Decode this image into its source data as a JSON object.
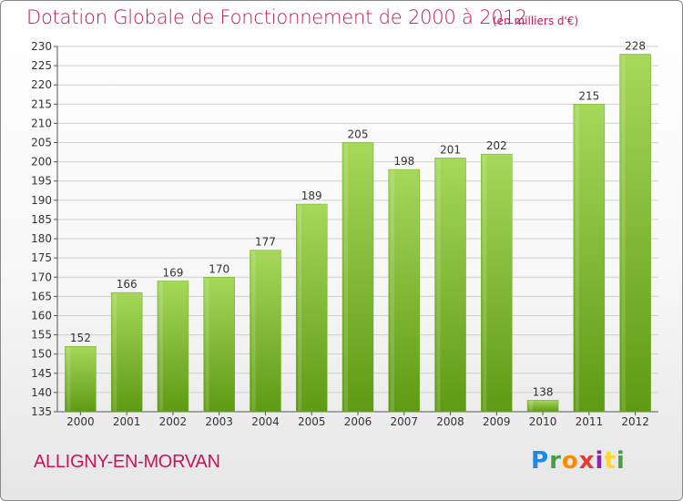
{
  "header": {
    "title": "Dotation Globale de Fonctionnement de 2000 à 2012",
    "unit": "(en milliers d'€)"
  },
  "footer": {
    "commune": "ALLIGNY-EN-MORVAN",
    "logo_text": "Proxiti"
  },
  "colors": {
    "bar_light": "#a6d85a",
    "bar_dark": "#5e9a14",
    "text_accent": "#c2185b",
    "grid": "#d0d0d0"
  },
  "chart_data": {
    "type": "bar",
    "title": "Dotation Globale de Fonctionnement de 2000 à 2012",
    "subtitle": "(en milliers d'€)",
    "xlabel": "",
    "ylabel": "",
    "categories": [
      "2000",
      "2001",
      "2002",
      "2003",
      "2004",
      "2005",
      "2006",
      "2007",
      "2008",
      "2009",
      "2010",
      "2011",
      "2012"
    ],
    "values": [
      152,
      166,
      169,
      170,
      177,
      189,
      205,
      198,
      201,
      202,
      138,
      215,
      228
    ],
    "ylim": [
      135,
      230
    ],
    "yticks": [
      135,
      140,
      145,
      150,
      155,
      160,
      165,
      170,
      175,
      180,
      185,
      190,
      195,
      200,
      205,
      210,
      215,
      220,
      225,
      230
    ],
    "grid": true,
    "legend": "none"
  }
}
